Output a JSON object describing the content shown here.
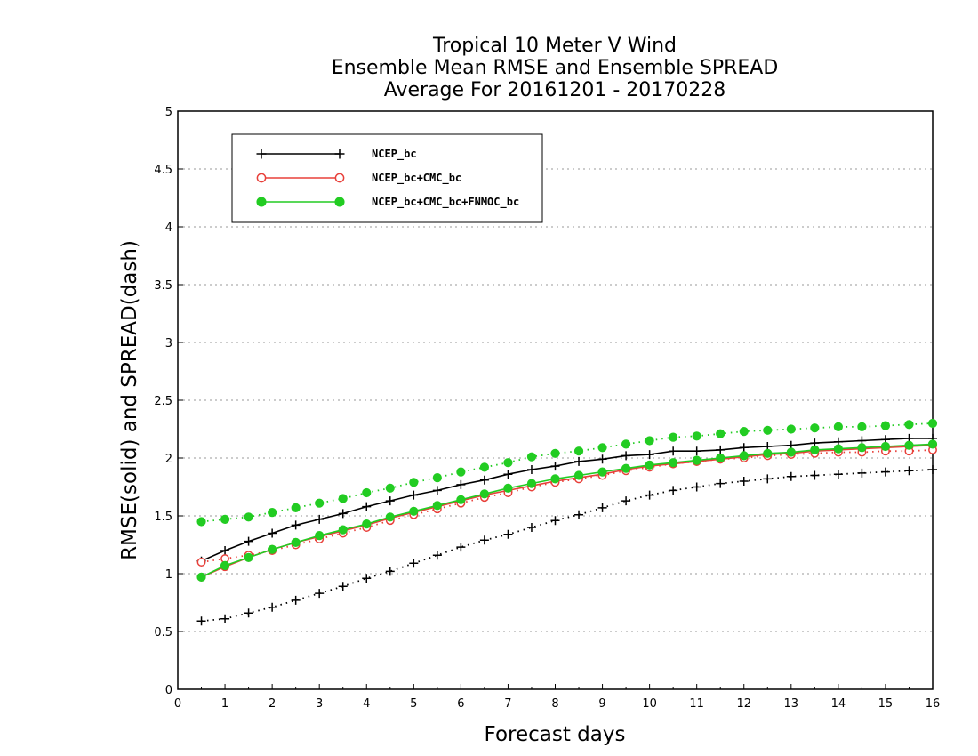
{
  "chart_data": {
    "type": "line",
    "title": [
      "Tropical 10 Meter V Wind",
      "Ensemble Mean RMSE and Ensemble SPREAD",
      "Average For 20161201 - 20170228"
    ],
    "xlabel": "Forecast days",
    "ylabel": "RMSE(solid) and SPREAD(dash)",
    "xlim": [
      0,
      16
    ],
    "ylim": [
      0,
      5
    ],
    "xticks": [
      "0",
      "1",
      "2",
      "3",
      "4",
      "5",
      "6",
      "7",
      "8",
      "9",
      "10",
      "11",
      "12",
      "13",
      "14",
      "15",
      "16"
    ],
    "yticks": [
      "0",
      "0.5",
      "1",
      "1.5",
      "2",
      "2.5",
      "3",
      "3.5",
      "4",
      "4.5",
      "5"
    ],
    "grid": "horizontal dotted",
    "legend_position": "top-left",
    "x": [
      0.5,
      1,
      1.5,
      2,
      2.5,
      3,
      3.5,
      4,
      4.5,
      5,
      5.5,
      6,
      6.5,
      7,
      7.5,
      8,
      8.5,
      9,
      9.5,
      10,
      10.5,
      11,
      11.5,
      12,
      12.5,
      13,
      13.5,
      14,
      14.5,
      15,
      15.5,
      16
    ],
    "series": [
      {
        "name": "NCEP_bc",
        "metric": "RMSE",
        "style": "solid",
        "marker": "plus",
        "color": "#000000",
        "values": [
          1.11,
          1.2,
          1.28,
          1.35,
          1.42,
          1.47,
          1.52,
          1.58,
          1.63,
          1.68,
          1.72,
          1.77,
          1.81,
          1.86,
          1.9,
          1.93,
          1.97,
          1.99,
          2.02,
          2.03,
          2.06,
          2.06,
          2.07,
          2.09,
          2.1,
          2.11,
          2.13,
          2.14,
          2.15,
          2.16,
          2.17,
          2.17
        ]
      },
      {
        "name": "NCEP_bc",
        "metric": "SPREAD",
        "style": "dotted",
        "marker": "plus",
        "color": "#000000",
        "values": [
          0.59,
          0.61,
          0.66,
          0.71,
          0.77,
          0.83,
          0.89,
          0.96,
          1.02,
          1.09,
          1.16,
          1.23,
          1.29,
          1.34,
          1.4,
          1.46,
          1.51,
          1.57,
          1.63,
          1.68,
          1.72,
          1.75,
          1.78,
          1.8,
          1.82,
          1.84,
          1.85,
          1.86,
          1.87,
          1.88,
          1.89,
          1.9
        ]
      },
      {
        "name": "NCEP_bc+CMC_bc",
        "metric": "RMSE",
        "style": "solid",
        "marker": "open-circle",
        "color": "#e8403a",
        "values": [
          0.97,
          1.06,
          1.14,
          1.21,
          1.27,
          1.32,
          1.37,
          1.42,
          1.48,
          1.53,
          1.58,
          1.63,
          1.68,
          1.72,
          1.76,
          1.8,
          1.83,
          1.86,
          1.9,
          1.93,
          1.95,
          1.97,
          1.99,
          2.01,
          2.03,
          2.04,
          2.06,
          2.07,
          2.08,
          2.09,
          2.1,
          2.11
        ]
      },
      {
        "name": "NCEP_bc+CMC_bc",
        "metric": "SPREAD",
        "style": "dotted",
        "marker": "open-circle",
        "color": "#e8403a",
        "values": [
          1.1,
          1.13,
          1.16,
          1.2,
          1.25,
          1.3,
          1.35,
          1.4,
          1.46,
          1.51,
          1.56,
          1.61,
          1.66,
          1.7,
          1.75,
          1.79,
          1.82,
          1.85,
          1.89,
          1.92,
          1.95,
          1.97,
          1.99,
          2.0,
          2.02,
          2.03,
          2.04,
          2.05,
          2.05,
          2.06,
          2.06,
          2.07
        ]
      },
      {
        "name": "NCEP_bc+CMC_bc+FNMOC_bc",
        "metric": "RMSE",
        "style": "solid",
        "marker": "filled-circle",
        "color": "#22cc22",
        "values": [
          0.97,
          1.07,
          1.14,
          1.21,
          1.27,
          1.33,
          1.38,
          1.43,
          1.49,
          1.54,
          1.59,
          1.64,
          1.69,
          1.74,
          1.78,
          1.82,
          1.85,
          1.88,
          1.91,
          1.94,
          1.96,
          1.98,
          2.0,
          2.02,
          2.04,
          2.05,
          2.07,
          2.08,
          2.09,
          2.1,
          2.11,
          2.12
        ]
      },
      {
        "name": "NCEP_bc+CMC_bc+FNMOC_bc",
        "metric": "SPREAD",
        "style": "dotted",
        "marker": "filled-circle",
        "color": "#22cc22",
        "values": [
          1.45,
          1.47,
          1.49,
          1.53,
          1.57,
          1.61,
          1.65,
          1.7,
          1.74,
          1.79,
          1.83,
          1.88,
          1.92,
          1.96,
          2.01,
          2.04,
          2.06,
          2.09,
          2.12,
          2.15,
          2.18,
          2.19,
          2.21,
          2.23,
          2.24,
          2.25,
          2.26,
          2.27,
          2.27,
          2.28,
          2.29,
          2.3
        ]
      }
    ],
    "legend": [
      {
        "label": "NCEP_bc",
        "marker": "plus",
        "color": "#000000"
      },
      {
        "label": "NCEP_bc+CMC_bc",
        "marker": "open-circle",
        "color": "#e8403a"
      },
      {
        "label": "NCEP_bc+CMC_bc+FNMOC_bc",
        "marker": "filled-circle",
        "color": "#22cc22"
      }
    ]
  }
}
